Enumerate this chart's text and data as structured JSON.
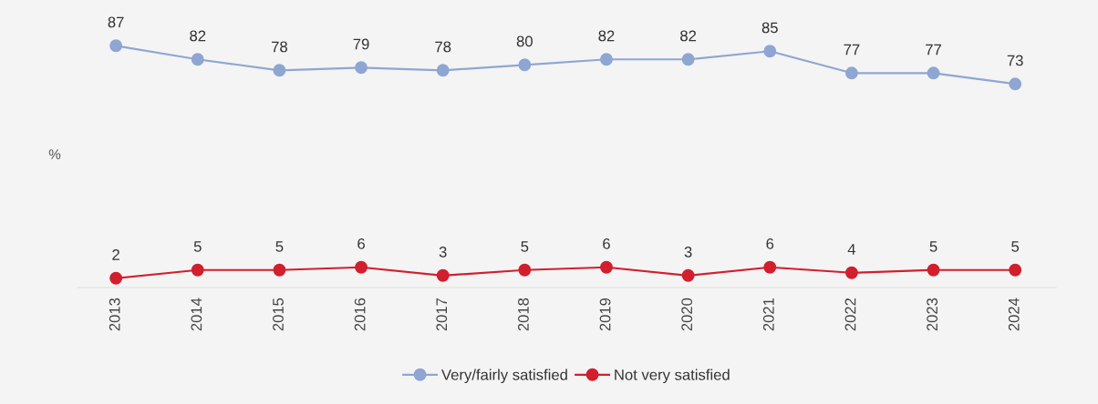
{
  "chart_data": {
    "type": "line",
    "ylabel": "%",
    "categories": [
      "2013",
      "2014",
      "2015",
      "2016",
      "2017",
      "2018",
      "2019",
      "2020",
      "2021",
      "2022",
      "2023",
      "2024"
    ],
    "series": [
      {
        "name": "Very/fairly satisfied",
        "color": "#8fa6d2",
        "values": [
          87,
          82,
          78,
          79,
          78,
          80,
          82,
          82,
          85,
          77,
          77,
          73
        ]
      },
      {
        "name": "Not very satisfied",
        "color": "#d21f2d",
        "values": [
          2,
          5,
          5,
          6,
          3,
          5,
          6,
          3,
          6,
          4,
          5,
          5
        ]
      }
    ],
    "tick_labels": "x",
    "data_labels": true,
    "grid": false,
    "legend": "bottom",
    "marker": "circle",
    "line_style": "solid"
  }
}
